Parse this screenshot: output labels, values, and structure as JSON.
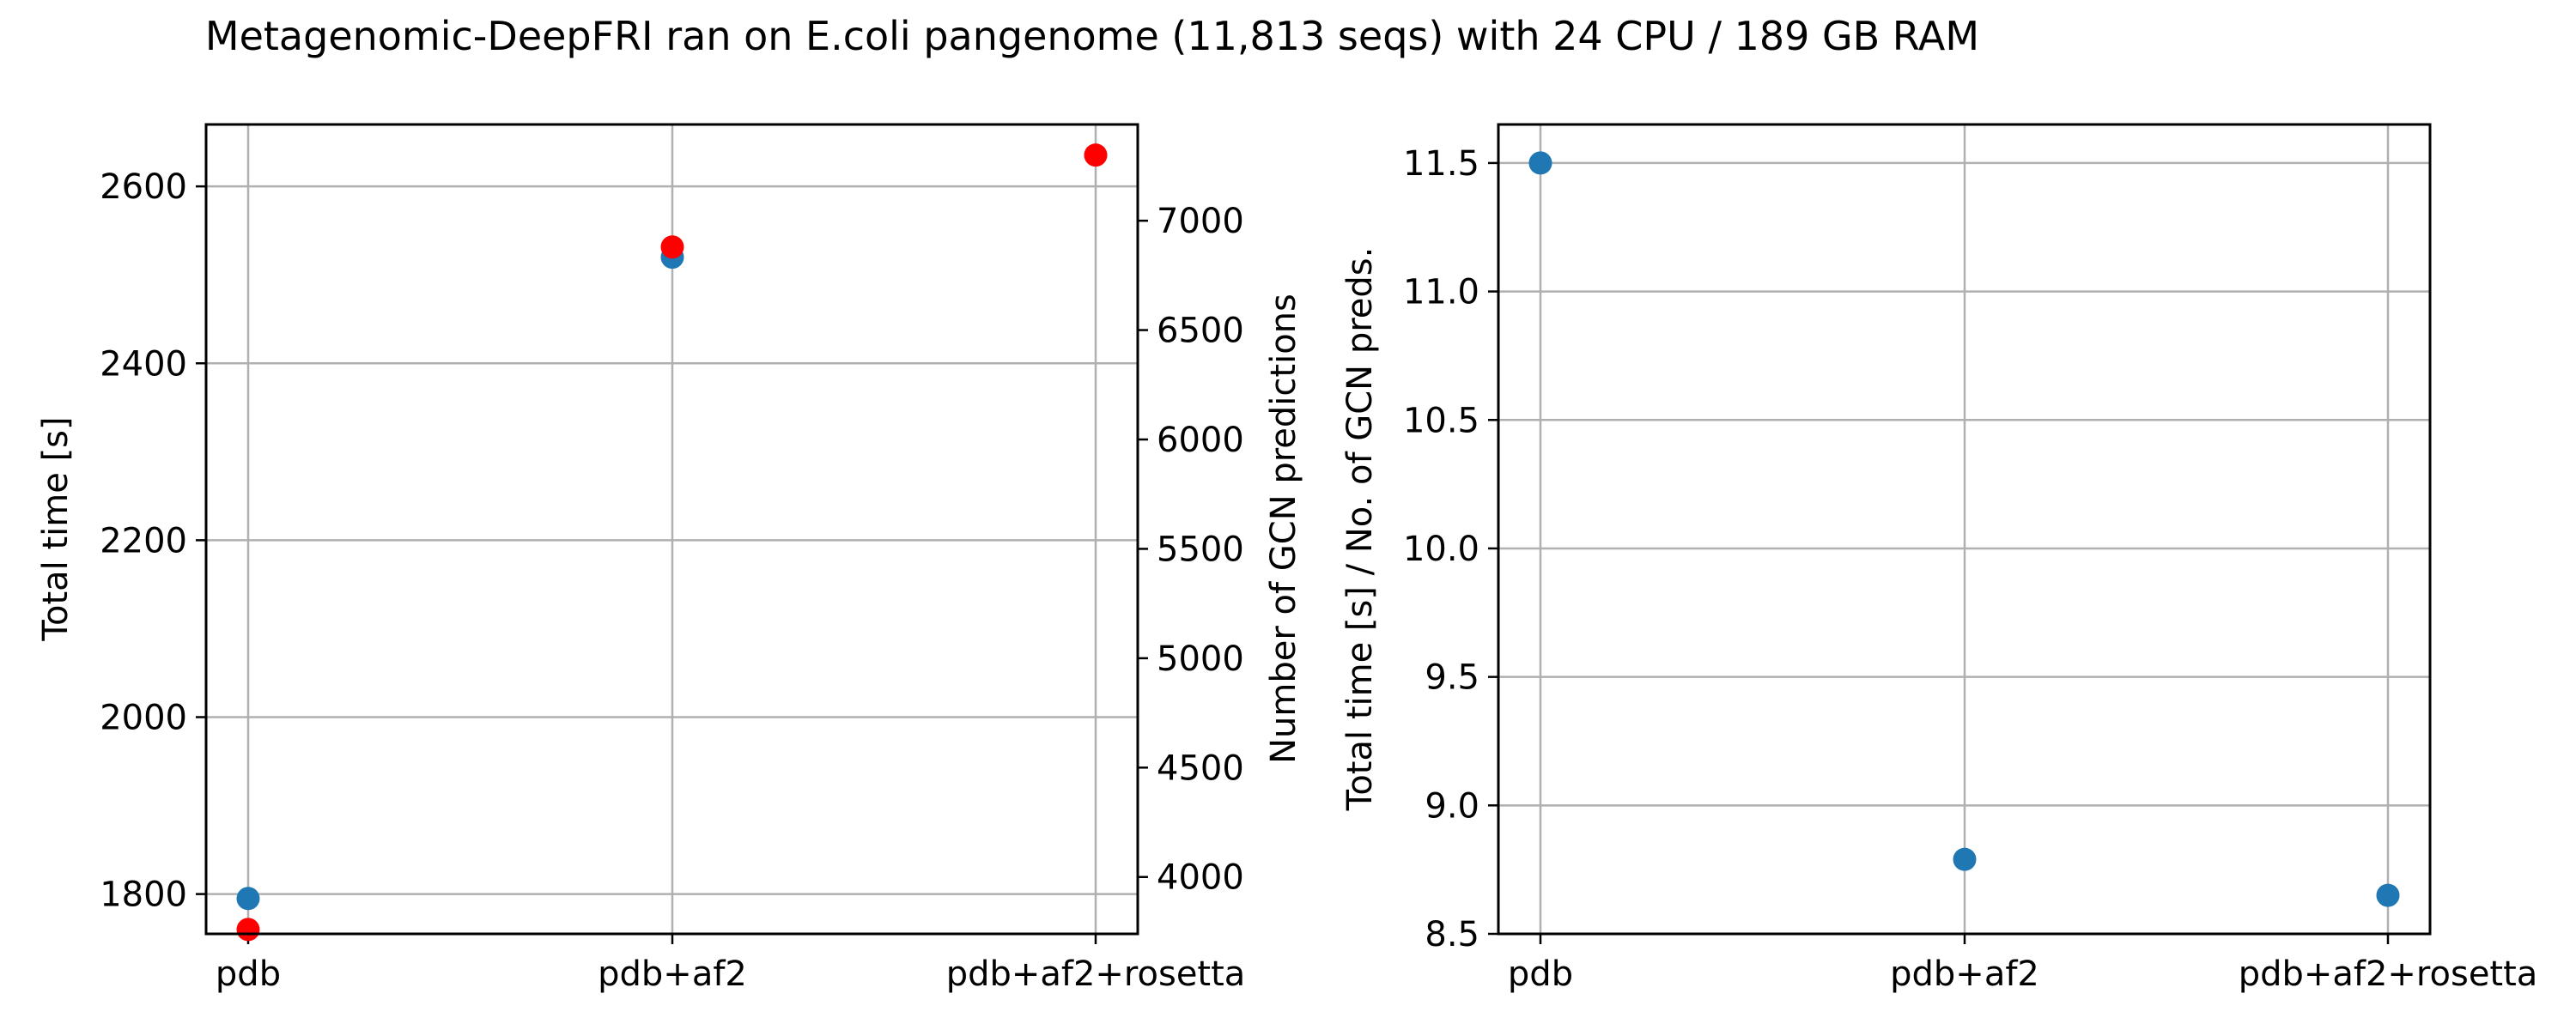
{
  "figure": {
    "suptitle": "Metagenomic-DeepFRI ran on E.coli pangenome (11,813 seqs) with 24 CPU / 189 GB RAM"
  },
  "chart_data": [
    {
      "type": "scatter",
      "categories": [
        "pdb",
        "pdb+af2",
        "pdb+af2+rosetta"
      ],
      "grid": true,
      "y_left": {
        "label": "Total time [s]",
        "lim": [
          1755,
          2670
        ],
        "ticks": [
          1800,
          2000,
          2200,
          2400,
          2600
        ],
        "tick_labels": [
          "1800",
          "2000",
          "2200",
          "2400",
          "2600"
        ]
      },
      "y_right": {
        "label": "Number of GCN predictions",
        "lim": [
          3740,
          7440
        ],
        "ticks": [
          4000,
          4500,
          5000,
          5500,
          6000,
          6500,
          7000
        ],
        "tick_labels": [
          "4000",
          "4500",
          "5000",
          "5500",
          "6000",
          "6500",
          "7000"
        ]
      },
      "series": [
        {
          "axis": "left",
          "color": "#1f77b4",
          "values": [
            1795,
            2520,
            null
          ]
        },
        {
          "axis": "right",
          "color": "#ff0000",
          "values": [
            3760,
            6880,
            7300
          ]
        }
      ]
    },
    {
      "type": "scatter",
      "categories": [
        "pdb",
        "pdb+af2",
        "pdb+af2+rosetta"
      ],
      "grid": true,
      "y": {
        "label": "Total time [s] / No. of GCN preds.",
        "lim": [
          8.5,
          11.65
        ],
        "ticks": [
          8.5,
          9.0,
          9.5,
          10.0,
          10.5,
          11.0,
          11.5
        ],
        "tick_labels": [
          "8.5",
          "9.0",
          "9.5",
          "10.0",
          "10.5",
          "11.0",
          "11.5"
        ]
      },
      "series": [
        {
          "color": "#1f77b4",
          "values": [
            11.5,
            8.79,
            8.65
          ]
        }
      ]
    }
  ]
}
